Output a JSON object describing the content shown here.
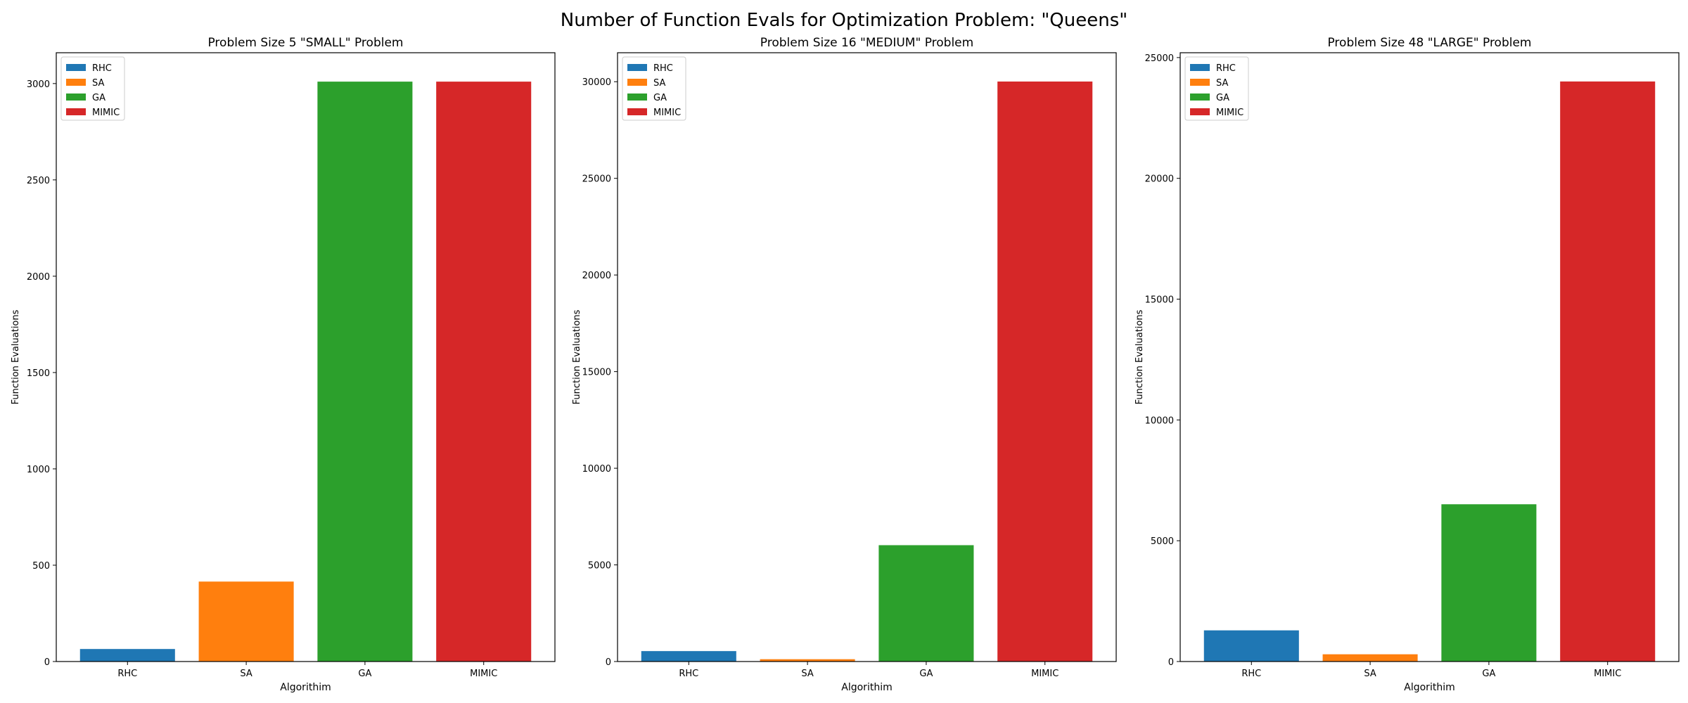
{
  "figure": {
    "suptitle": "Number of Function Evals for Optimization Problem: \"Queens\""
  },
  "chart_data": [
    {
      "type": "bar",
      "title": "Problem Size 5 \"SMALL\" Problem",
      "xlabel": "Algorithim",
      "ylabel": "Function Evaluations",
      "categories": [
        "RHC",
        "SA",
        "GA",
        "MIMIC"
      ],
      "values": [
        65,
        415,
        3010,
        3010
      ],
      "colors": [
        "#1f77b4",
        "#ff7f0e",
        "#2ca02c",
        "#d62728"
      ],
      "ylim": [
        0,
        3160
      ],
      "yticks": [
        0,
        500,
        1000,
        1500,
        2000,
        2500,
        3000
      ],
      "legend": [
        "RHC",
        "SA",
        "GA",
        "MIMIC"
      ],
      "legend_loc": "upper left",
      "grid": false
    },
    {
      "type": "bar",
      "title": "Problem Size 16 \"MEDIUM\" Problem",
      "xlabel": "Algorithim",
      "ylabel": "Function Evaluations",
      "categories": [
        "RHC",
        "SA",
        "GA",
        "MIMIC"
      ],
      "values": [
        540,
        120,
        6020,
        30010
      ],
      "colors": [
        "#1f77b4",
        "#ff7f0e",
        "#2ca02c",
        "#d62728"
      ],
      "ylim": [
        0,
        31500
      ],
      "yticks": [
        0,
        5000,
        10000,
        15000,
        20000,
        25000,
        30000
      ],
      "legend": [
        "RHC",
        "SA",
        "GA",
        "MIMIC"
      ],
      "legend_loc": "upper left",
      "grid": false
    },
    {
      "type": "bar",
      "title": "Problem Size 48 \"LARGE\" Problem",
      "xlabel": "Algorithim",
      "ylabel": "Function Evaluations",
      "categories": [
        "RHC",
        "SA",
        "GA",
        "MIMIC"
      ],
      "values": [
        1290,
        300,
        6510,
        24010
      ],
      "colors": [
        "#1f77b4",
        "#ff7f0e",
        "#2ca02c",
        "#d62728"
      ],
      "ylim": [
        0,
        25200
      ],
      "yticks": [
        0,
        5000,
        10000,
        15000,
        20000,
        25000
      ],
      "legend": [
        "RHC",
        "SA",
        "GA",
        "MIMIC"
      ],
      "legend_loc": "upper left",
      "grid": false
    }
  ]
}
